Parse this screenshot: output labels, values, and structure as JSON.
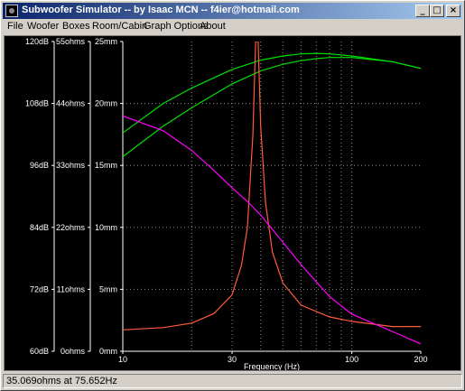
{
  "window": {
    "title": "Subwoofer Simulator -- by Isaac MCN -- f4ier@hotmail.com"
  },
  "controls": {
    "minimize": "_",
    "maximize": "□",
    "close": "×"
  },
  "menu": [
    "File",
    "Woofer",
    "Boxes",
    "Room/Cabin",
    "Graph Options",
    "About"
  ],
  "status": {
    "text": "35.069ohms at 75.652Hz"
  },
  "colors": {
    "background": "#000000",
    "grid": "#8c8c8c",
    "spl": "#00e000",
    "impedance": "#ff5a3c",
    "excursion": "#ff00ff"
  },
  "chart_data": {
    "type": "line",
    "xlabel": "Frequency (Hz)",
    "xscale": "log",
    "xlim": [
      10,
      200
    ],
    "x_ticks": [
      {
        "label": "10",
        "value": 10
      },
      {
        "label": "30",
        "value": 30
      },
      {
        "label": "100",
        "value": 100
      },
      {
        "label": "200",
        "value": 200
      }
    ],
    "x_grid": [
      20,
      30,
      40,
      50,
      60,
      70,
      80,
      90,
      100
    ],
    "y_axes": [
      {
        "unit": "dB",
        "range": [
          60,
          120
        ],
        "ticks": [
          "120dB",
          "108dB",
          "96dB",
          "84dB",
          "72dB",
          "60dB"
        ]
      },
      {
        "unit": "ohms",
        "range": [
          0,
          55
        ],
        "ticks": [
          "55ohms",
          "44ohms",
          "33ohms",
          "22ohms",
          "11ohms",
          "0ohms"
        ]
      },
      {
        "unit": "mm",
        "range": [
          0,
          25
        ],
        "ticks": [
          "25mm",
          "20mm",
          "15mm",
          "10mm",
          "5mm",
          "0mm"
        ]
      }
    ],
    "series": [
      {
        "axis": "dB",
        "color": "#00e000",
        "points": [
          [
            10,
            102.3
          ],
          [
            15,
            108
          ],
          [
            20,
            111
          ],
          [
            30,
            114.6
          ],
          [
            40,
            116.4
          ],
          [
            50,
            117.2
          ],
          [
            60,
            117.6
          ],
          [
            70,
            117.7
          ],
          [
            80,
            117.6
          ],
          [
            100,
            117.2
          ],
          [
            150,
            116.1
          ],
          [
            200,
            114.8
          ]
        ]
      },
      {
        "axis": "dB",
        "color": "#00e000",
        "points": [
          [
            10,
            97.7
          ],
          [
            15,
            103.6
          ],
          [
            20,
            107.2
          ],
          [
            30,
            111.8
          ],
          [
            40,
            114.3
          ],
          [
            50,
            115.6
          ],
          [
            60,
            116.3
          ],
          [
            70,
            116.7
          ],
          [
            80,
            116.9
          ],
          [
            100,
            116.9
          ],
          [
            150,
            116.1
          ],
          [
            200,
            114.8
          ]
        ]
      },
      {
        "axis": "ohms",
        "color": "#ff5a3c",
        "points": [
          [
            10,
            3.8
          ],
          [
            15,
            4.2
          ],
          [
            20,
            5
          ],
          [
            25,
            6.7
          ],
          [
            30,
            10
          ],
          [
            33,
            15.3
          ],
          [
            35,
            22
          ],
          [
            37,
            38.5
          ],
          [
            38,
            55
          ],
          [
            39,
            55
          ],
          [
            40,
            40
          ],
          [
            42,
            26.4
          ],
          [
            45,
            17.6
          ],
          [
            50,
            12.1
          ],
          [
            60,
            8.2
          ],
          [
            80,
            6.1
          ],
          [
            100,
            5.3
          ],
          [
            150,
            4.4
          ],
          [
            200,
            4.4
          ]
        ]
      },
      {
        "axis": "mm",
        "color": "#ff00ff",
        "points": [
          [
            10,
            19
          ],
          [
            15,
            17.8
          ],
          [
            20,
            16.2
          ],
          [
            25,
            14.6
          ],
          [
            30,
            13.2
          ],
          [
            35,
            12.1
          ],
          [
            40,
            11
          ],
          [
            50,
            8.8
          ],
          [
            60,
            7
          ],
          [
            70,
            5.6
          ],
          [
            80,
            4.4
          ],
          [
            100,
            3
          ],
          [
            150,
            1.6
          ],
          [
            200,
            0.6
          ]
        ]
      }
    ]
  }
}
